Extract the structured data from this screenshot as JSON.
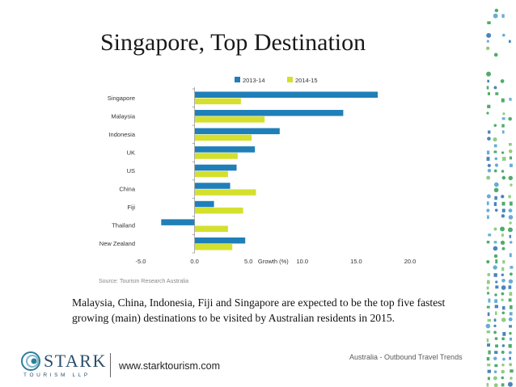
{
  "slide": {
    "title": "Singapore, Top Destination",
    "caption": "Malaysia, China, Indonesia, Fiji and Singapore are expected to be the top five fastest growing (main) destinations to be visited by Australian residents in 2015.",
    "footer_note": "Australia - Outbound Travel Trends",
    "website": "www.starktourism.com",
    "logo_name": "STARK",
    "logo_sub": "TOURISM LLP"
  },
  "colors": {
    "series_2013": "#1f7fb8",
    "series_2014": "#d4e02d",
    "axis": "#999999",
    "deco_green": "#2f9e52",
    "deco_blue": "#2b6fb0",
    "logo_teal": "#2a7e9b"
  },
  "chart_data": {
    "type": "bar",
    "orientation": "horizontal",
    "categories": [
      "Singapore",
      "Malaysia",
      "Indonesia",
      "UK",
      "US",
      "China",
      "Fiji",
      "Thailand",
      "New Zealand"
    ],
    "series": [
      {
        "name": "2013-14",
        "values": [
          17.0,
          13.8,
          7.9,
          5.6,
          3.9,
          3.3,
          1.8,
          -3.1,
          4.7
        ]
      },
      {
        "name": "2014-15",
        "values": [
          4.3,
          6.5,
          5.3,
          4.0,
          3.1,
          5.7,
          4.5,
          3.1,
          3.5
        ]
      }
    ],
    "x_ticks": [
      "-5.0",
      "0.0",
      "5.0",
      "10.0",
      "15.0",
      "20.0"
    ],
    "xlim": [
      -5,
      20
    ],
    "xlabel": "Growth (%)",
    "source": "Source: Tourism Research Australia",
    "legend_position": "top",
    "grid": false
  }
}
